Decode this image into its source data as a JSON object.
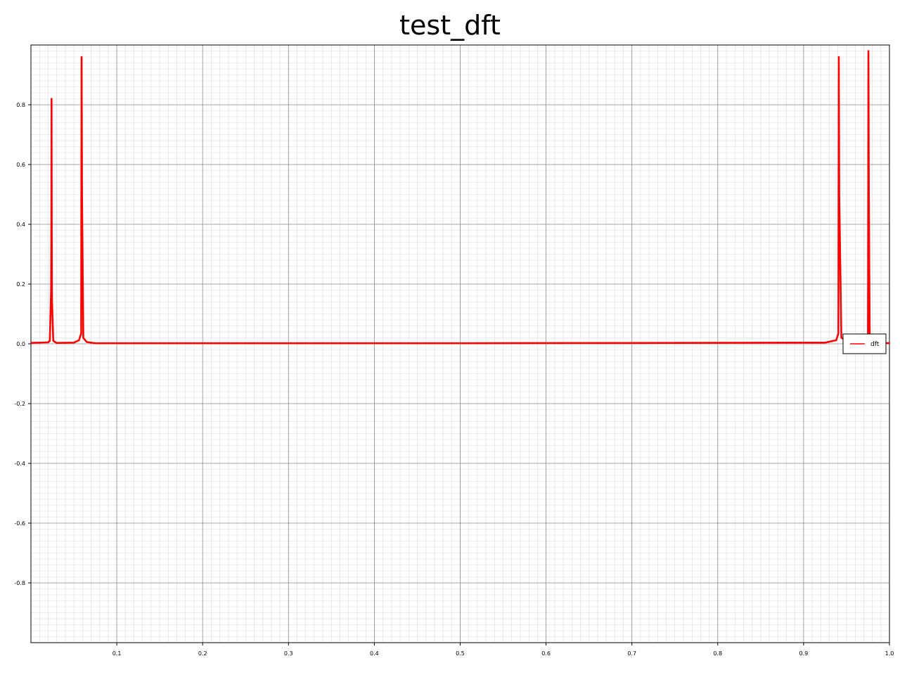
{
  "chart_data": {
    "type": "line",
    "title": "test_dft",
    "xlabel": "",
    "ylabel": "",
    "xlim": [
      0.0,
      1.0
    ],
    "ylim": [
      -1.0,
      1.0
    ],
    "grid": true,
    "legend_position": "right",
    "x_ticks": [
      "0.1",
      "0.2",
      "0.3",
      "0.4",
      "0.5",
      "0.6",
      "0.7",
      "0.8",
      "0.9",
      "1.0"
    ],
    "y_ticks": [
      "0.8",
      "0.6",
      "0.4",
      "0.2",
      "0.0",
      "-0.2",
      "-0.4",
      "-0.6",
      "-0.8"
    ],
    "series": [
      {
        "name": "dft",
        "color": "#ff0000",
        "x": [
          0.0,
          0.02,
          0.022,
          0.0235,
          0.0238,
          0.024,
          0.0242,
          0.0245,
          0.026,
          0.03,
          0.05,
          0.056,
          0.0585,
          0.059,
          0.0595,
          0.061,
          0.065,
          0.075,
          0.5,
          0.925,
          0.938,
          0.9405,
          0.941,
          0.9415,
          0.944,
          0.955,
          0.972,
          0.975,
          0.9755,
          0.976,
          0.977,
          0.98,
          1.0
        ],
        "y": [
          0.003,
          0.005,
          0.01,
          0.18,
          0.42,
          0.82,
          0.42,
          0.15,
          0.01,
          0.003,
          0.004,
          0.012,
          0.035,
          0.96,
          0.5,
          0.02,
          0.006,
          0.002,
          0.002,
          0.004,
          0.012,
          0.035,
          0.96,
          0.5,
          0.02,
          0.004,
          0.01,
          0.03,
          0.98,
          0.5,
          0.02,
          0.005,
          0.002
        ]
      }
    ]
  }
}
